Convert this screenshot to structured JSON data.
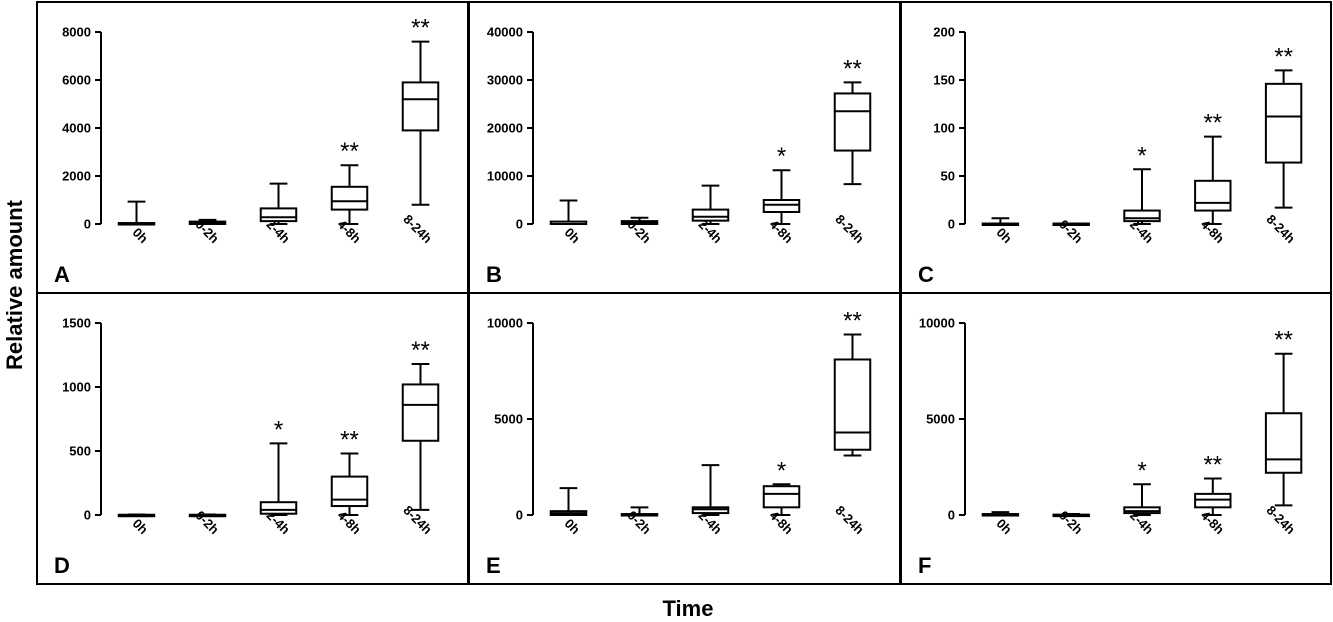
{
  "ylabel": "Relative amount",
  "xlabel": "Time",
  "chart_data": [
    {
      "panel": "A",
      "type": "box",
      "ylim": [
        0,
        8000
      ],
      "yticks": [
        0,
        2000,
        4000,
        6000,
        8000
      ],
      "categories": [
        "0h",
        "0-2h",
        "2-4h",
        "4-8h",
        "8-24h"
      ],
      "boxes": [
        {
          "min": 0,
          "q1": 0,
          "median": 0,
          "q3": 40,
          "max": 930,
          "sig": ""
        },
        {
          "min": 0,
          "q1": 0,
          "median": 40,
          "q3": 100,
          "max": 170,
          "sig": ""
        },
        {
          "min": 0,
          "q1": 120,
          "median": 280,
          "q3": 650,
          "max": 1680,
          "sig": ""
        },
        {
          "min": 0,
          "q1": 600,
          "median": 950,
          "q3": 1550,
          "max": 2450,
          "sig": "**"
        },
        {
          "min": 800,
          "q1": 3900,
          "median": 5200,
          "q3": 5900,
          "max": 7600,
          "sig": "**"
        }
      ]
    },
    {
      "panel": "B",
      "type": "box",
      "ylim": [
        0,
        40000
      ],
      "yticks": [
        0,
        10000,
        20000,
        30000,
        40000
      ],
      "categories": [
        "0h",
        "0-2h",
        "2-4h",
        "4-8h",
        "8-24h"
      ],
      "boxes": [
        {
          "min": 0,
          "q1": 0,
          "median": 0,
          "q3": 500,
          "max": 4900,
          "sig": ""
        },
        {
          "min": 0,
          "q1": 0,
          "median": 200,
          "q3": 600,
          "max": 1300,
          "sig": ""
        },
        {
          "min": 0,
          "q1": 700,
          "median": 1500,
          "q3": 3000,
          "max": 8000,
          "sig": ""
        },
        {
          "min": 0,
          "q1": 2500,
          "median": 4000,
          "q3": 5000,
          "max": 11200,
          "sig": "*"
        },
        {
          "min": 8300,
          "q1": 15300,
          "median": 23500,
          "q3": 27200,
          "max": 29500,
          "sig": "**"
        }
      ]
    },
    {
      "panel": "C",
      "type": "box",
      "ylim": [
        0,
        200
      ],
      "yticks": [
        0,
        50,
        100,
        150,
        200
      ],
      "categories": [
        "0h",
        "0-2h",
        "2-4h",
        "4-8h",
        "8-24h"
      ],
      "boxes": [
        {
          "min": 0,
          "q1": 0,
          "median": 0,
          "q3": 0.5,
          "max": 6,
          "sig": ""
        },
        {
          "min": 0,
          "q1": 0,
          "median": 0,
          "q3": 0.5,
          "max": 0.5,
          "sig": ""
        },
        {
          "min": 0,
          "q1": 3,
          "median": 6,
          "q3": 14,
          "max": 57,
          "sig": "*"
        },
        {
          "min": 0,
          "q1": 14,
          "median": 22,
          "q3": 45,
          "max": 91,
          "sig": "**"
        },
        {
          "min": 17,
          "q1": 64,
          "median": 112,
          "q3": 146,
          "max": 160,
          "sig": "**"
        }
      ]
    },
    {
      "panel": "D",
      "type": "box",
      "ylim": [
        0,
        1500
      ],
      "yticks": [
        0,
        500,
        1000,
        1500
      ],
      "categories": [
        "0h",
        "0-2h",
        "2-4h",
        "4-8h",
        "8-24h"
      ],
      "boxes": [
        {
          "min": 0,
          "q1": 0,
          "median": 0,
          "q3": 2,
          "max": 4,
          "sig": ""
        },
        {
          "min": 0,
          "q1": 0,
          "median": 0,
          "q3": 2,
          "max": 4,
          "sig": ""
        },
        {
          "min": 0,
          "q1": 10,
          "median": 40,
          "q3": 100,
          "max": 560,
          "sig": "*"
        },
        {
          "min": 0,
          "q1": 70,
          "median": 120,
          "q3": 300,
          "max": 480,
          "sig": "**"
        },
        {
          "min": 40,
          "q1": 580,
          "median": 860,
          "q3": 1020,
          "max": 1180,
          "sig": "**"
        }
      ]
    },
    {
      "panel": "E",
      "type": "box",
      "ylim": [
        0,
        10000
      ],
      "yticks": [
        0,
        5000,
        10000
      ],
      "categories": [
        "0h",
        "0-2h",
        "2-4h",
        "4-8h",
        "8-24h"
      ],
      "boxes": [
        {
          "min": 0,
          "q1": 0,
          "median": 100,
          "q3": 200,
          "max": 1400,
          "sig": ""
        },
        {
          "min": 0,
          "q1": 0,
          "median": 0,
          "q3": 50,
          "max": 400,
          "sig": ""
        },
        {
          "min": 0,
          "q1": 100,
          "median": 300,
          "q3": 400,
          "max": 2600,
          "sig": ""
        },
        {
          "min": 0,
          "q1": 400,
          "median": 1100,
          "q3": 1500,
          "max": 1600,
          "sig": "*"
        },
        {
          "min": 3100,
          "q1": 3400,
          "median": 4300,
          "q3": 8100,
          "max": 9400,
          "sig": "**"
        }
      ]
    },
    {
      "panel": "F",
      "type": "box",
      "ylim": [
        0,
        10000
      ],
      "yticks": [
        0,
        5000,
        10000
      ],
      "categories": [
        "0h",
        "0-2h",
        "2-4h",
        "4-8h",
        "8-24h"
      ],
      "boxes": [
        {
          "min": 0,
          "q1": 0,
          "median": 0,
          "q3": 50,
          "max": 150,
          "sig": ""
        },
        {
          "min": 0,
          "q1": 0,
          "median": 0,
          "q3": 20,
          "max": 50,
          "sig": ""
        },
        {
          "min": 0,
          "q1": 100,
          "median": 200,
          "q3": 400,
          "max": 1600,
          "sig": "*"
        },
        {
          "min": 0,
          "q1": 400,
          "median": 800,
          "q3": 1100,
          "max": 1900,
          "sig": "**"
        },
        {
          "min": 500,
          "q1": 2200,
          "median": 2900,
          "q3": 5300,
          "max": 8400,
          "sig": "**"
        }
      ]
    }
  ]
}
